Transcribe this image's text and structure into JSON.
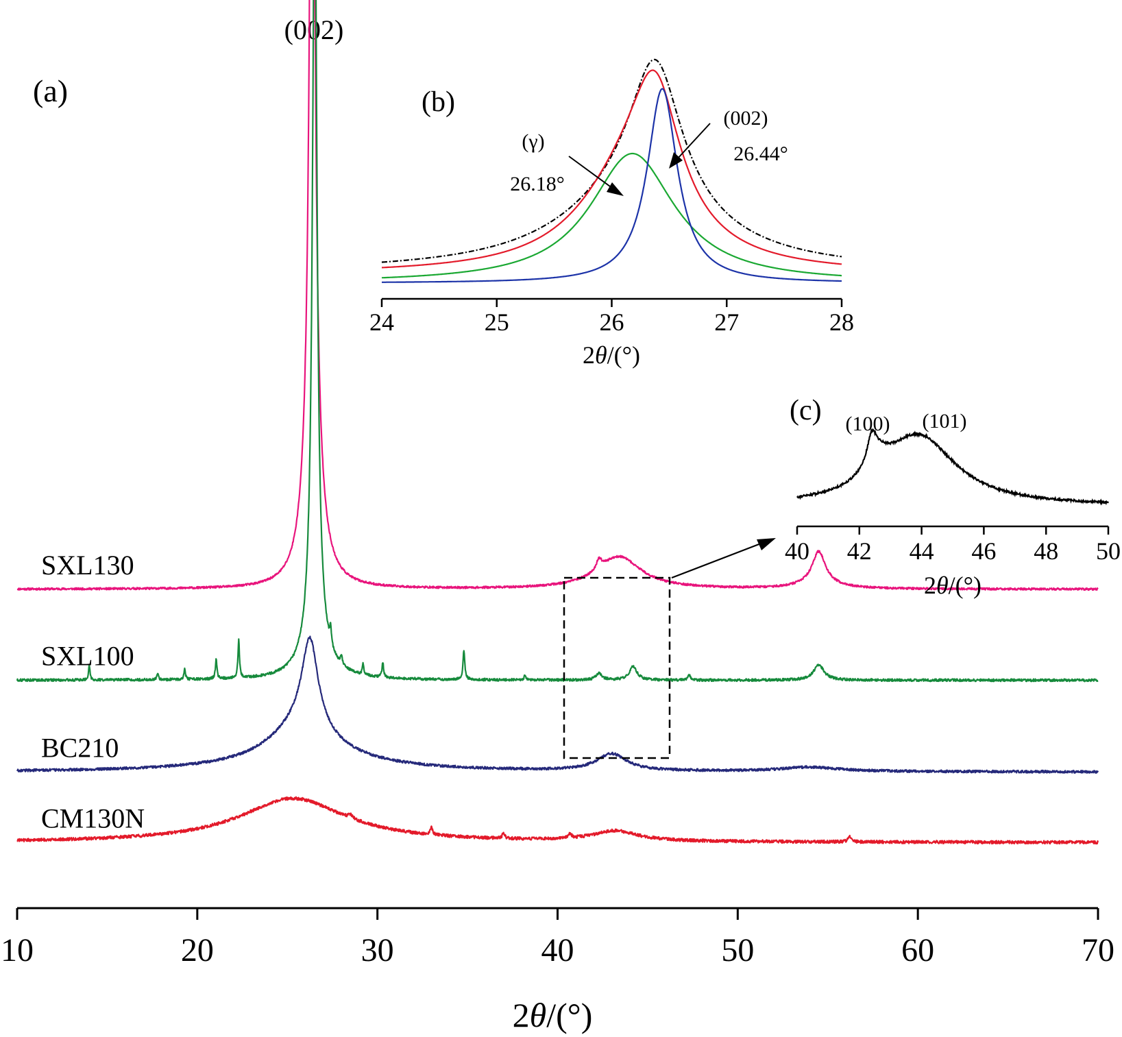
{
  "chart_data": [
    {
      "panel": "(a)",
      "type": "line",
      "xlabel_pre": "2",
      "xlabel_theta": "θ",
      "xlabel_post": "/(°)",
      "xlim": [
        10,
        70
      ],
      "xticks": [
        10,
        20,
        30,
        40,
        50,
        60,
        70
      ],
      "y_axis_shown": false,
      "peak_label": "(002)",
      "series": [
        {
          "name": "SXL130",
          "color": "#e8147c",
          "baseline": 0.355,
          "noise": 0.0012,
          "peaks": [
            {
              "c": 26.38,
              "h": 0.99,
              "w": 0.15
            },
            {
              "c": 26.38,
              "h": 0.24,
              "w": 0.45
            },
            {
              "c": 42.3,
              "h": 0.012,
              "w": 0.18
            },
            {
              "c": 43.4,
              "h": 0.038,
              "w": 1.5
            },
            {
              "c": 54.5,
              "h": 0.036,
              "w": 0.42
            },
            {
              "c": 54.5,
              "h": 0.008,
              "w": 1.2
            }
          ]
        },
        {
          "name": "SXL100",
          "color": "#168a3c",
          "baseline": 0.248,
          "noise": 0.0015,
          "peaks": [
            {
              "c": 26.52,
              "h": 0.87,
              "w": 0.14
            },
            {
              "c": 26.52,
              "h": 0.1,
              "w": 0.4
            },
            {
              "c": 26.55,
              "h": 0.015,
              "w": 1.2
            },
            {
              "c": 14.0,
              "h": 0.017,
              "w": 0.05
            },
            {
              "c": 17.8,
              "h": 0.007,
              "w": 0.05
            },
            {
              "c": 19.3,
              "h": 0.012,
              "w": 0.05
            },
            {
              "c": 21.05,
              "h": 0.024,
              "w": 0.05
            },
            {
              "c": 22.3,
              "h": 0.045,
              "w": 0.05
            },
            {
              "c": 27.4,
              "h": 0.018,
              "w": 0.05
            },
            {
              "c": 28.0,
              "h": 0.01,
              "w": 0.05
            },
            {
              "c": 29.2,
              "h": 0.012,
              "w": 0.05
            },
            {
              "c": 30.3,
              "h": 0.018,
              "w": 0.05
            },
            {
              "c": 34.8,
              "h": 0.035,
              "w": 0.06
            },
            {
              "c": 38.2,
              "h": 0.006,
              "w": 0.06
            },
            {
              "c": 42.3,
              "h": 0.008,
              "w": 0.2
            },
            {
              "c": 44.2,
              "h": 0.016,
              "w": 0.25
            },
            {
              "c": 47.3,
              "h": 0.006,
              "w": 0.08
            },
            {
              "c": 54.5,
              "h": 0.018,
              "w": 0.35
            }
          ]
        },
        {
          "name": "BC210",
          "color": "#25297a",
          "baseline": 0.14,
          "noise": 0.0015,
          "peaks": [
            {
              "c": 26.25,
              "h": 0.105,
              "w": 0.55
            },
            {
              "c": 25.8,
              "h": 0.045,
              "w": 2.2
            },
            {
              "c": 26.3,
              "h": 0.01,
              "w": 5.0
            },
            {
              "c": 43.0,
              "h": 0.02,
              "w": 1.0
            },
            {
              "c": 54.0,
              "h": 0.005,
              "w": 2.0
            }
          ]
        },
        {
          "name": "CM130N",
          "color": "#e31a2a",
          "baseline": 0.057,
          "noise": 0.0018,
          "peaks": [
            {
              "c": 25.3,
              "h": 0.052,
              "w": 3.6
            },
            {
              "c": 28.5,
              "h": 0.004,
              "w": 0.15
            },
            {
              "c": 33.0,
              "h": 0.008,
              "w": 0.08
            },
            {
              "c": 37.0,
              "h": 0.006,
              "w": 0.08
            },
            {
              "c": 40.7,
              "h": 0.005,
              "w": 0.1
            },
            {
              "c": 43.2,
              "h": 0.012,
              "w": 1.5
            },
            {
              "c": 56.2,
              "h": 0.007,
              "w": 0.1
            }
          ]
        }
      ]
    },
    {
      "panel": "(b)",
      "type": "line",
      "xlabel_pre": "2",
      "xlabel_theta": "θ",
      "xlabel_post": "/(°)",
      "xlim": [
        24,
        28
      ],
      "xticks": [
        24,
        25,
        26,
        27,
        28
      ],
      "series": [
        {
          "role": "measured",
          "color": "#000000",
          "dash": "8,3,2,3",
          "peaks": [
            {
              "c": 26.38,
              "h": 0.68,
              "w": 0.28
            },
            {
              "c": 26.2,
              "h": 0.32,
              "w": 0.8
            }
          ],
          "baseline": 0.05
        },
        {
          "role": "fit",
          "color": "#e31a2a",
          "peaks": [
            {
              "c": 26.38,
              "h": 0.6,
              "w": 0.26
            },
            {
              "c": 26.15,
              "h": 0.4,
              "w": 0.55
            }
          ],
          "baseline": 0.04
        },
        {
          "role": "component-gamma",
          "color": "#1aa832",
          "peaks": [
            {
              "c": 26.18,
              "h": 0.6,
              "w": 0.45
            }
          ],
          "baseline": 0.0
        },
        {
          "role": "component-002",
          "color": "#1c33a8",
          "peaks": [
            {
              "c": 26.44,
              "h": 0.9,
              "w": 0.16
            }
          ],
          "baseline": 0.0
        }
      ],
      "annotations": [
        {
          "label": "(γ)",
          "value": "26.18°",
          "x": 26.18
        },
        {
          "label": "(002)",
          "value": "26.44°",
          "x": 26.44
        }
      ]
    },
    {
      "panel": "(c)",
      "type": "line",
      "xlabel_pre": "2",
      "xlabel_theta": "θ",
      "xlabel_post": "/(°)",
      "xlim": [
        40,
        50
      ],
      "xticks": [
        40,
        42,
        44,
        46,
        48,
        50
      ],
      "series": [
        {
          "role": "zoom",
          "color": "#000000",
          "baseline": 0.05,
          "noise": 0.012,
          "peaks": [
            {
              "c": 42.4,
              "h": 0.3,
              "w": 0.18
            },
            {
              "c": 43.9,
              "h": 0.78,
              "w": 1.45
            },
            {
              "c": 42.6,
              "h": 0.2,
              "w": 0.5
            }
          ]
        }
      ],
      "annotations": [
        {
          "label": "(100)",
          "x": 42.4
        },
        {
          "label": "(101)",
          "x": 44.2
        }
      ]
    }
  ]
}
